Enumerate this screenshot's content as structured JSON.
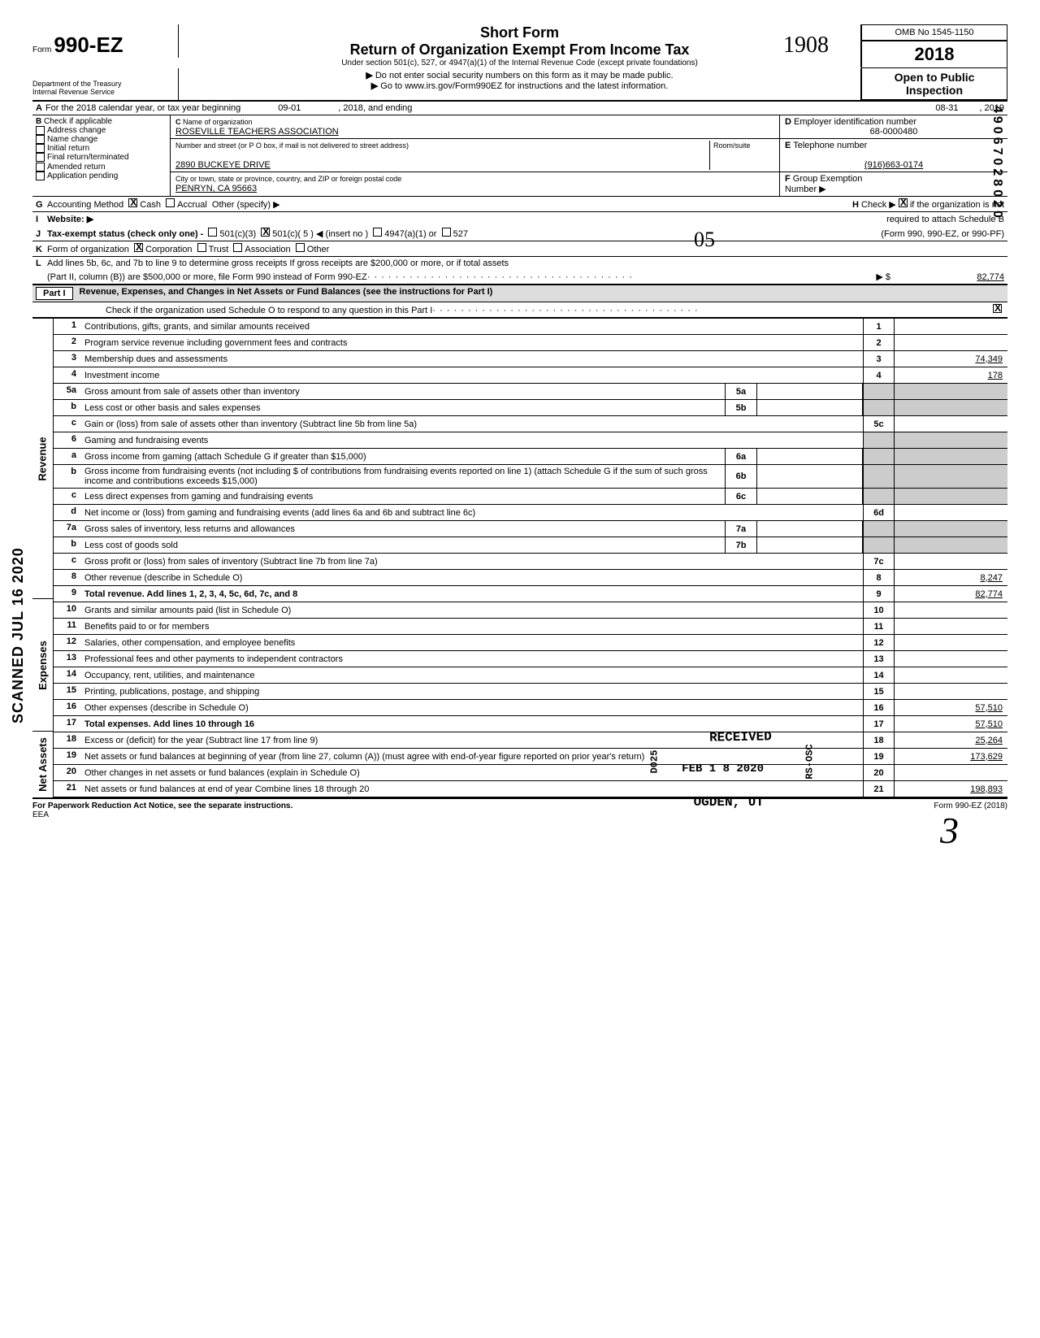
{
  "header": {
    "form_label": "Form",
    "form_number": "990-EZ",
    "title_short": "Short Form",
    "title_main": "Return of Organization Exempt From Income Tax",
    "subtitle": "Under section 501(c), 527, or 4947(a)(1) of the Internal Revenue Code (except private foundations)",
    "note1": "Do not enter social security numbers on this form as it may be made public.",
    "note2": "Go to www.irs.gov/Form990EZ for instructions and the latest information.",
    "dept": "Department of the Treasury",
    "irs": "Internal Revenue Service",
    "omb": "OMB No 1545-1150",
    "year": "2018",
    "open_public": "Open to Public",
    "inspection": "Inspection"
  },
  "line_a": {
    "label": "A",
    "text_prefix": "For the 2018 calendar year, or tax year beginning",
    "begin": "09-01",
    "mid": ", 2018, and ending",
    "end": "08-31",
    "end_year": ", 2019"
  },
  "block_b": {
    "label": "B",
    "check_if": "Check if applicable",
    "items": [
      "Address change",
      "Name change",
      "Initial return",
      "Final return/terminated",
      "Amended return",
      "Application pending"
    ]
  },
  "block_c": {
    "label": "C",
    "name_label": "Name of organization",
    "name": "ROSEVILLE TEACHERS ASSOCIATION",
    "street_label": "Number and street (or P O box, if mail is not delivered to street address)",
    "room_label": "Room/suite",
    "street": "2890 BUCKEYE DRIVE",
    "city_label": "City or town, state or province, country, and ZIP or foreign postal code",
    "city": "PENRYN, CA 95663"
  },
  "block_d": {
    "label": "D",
    "text": "Employer identification number",
    "value": "68-0000480"
  },
  "block_e": {
    "label": "E",
    "text": "Telephone number",
    "value": "(916)663-0174"
  },
  "block_f": {
    "label": "F",
    "text": "Group Exemption",
    "number_label": "Number ▶"
  },
  "line_g": {
    "label": "G",
    "text": "Accounting Method",
    "cash": "Cash",
    "accrual": "Accrual",
    "other": "Other (specify) ▶"
  },
  "line_h": {
    "label": "H",
    "check": "Check ▶",
    "text1": "if the organization is not",
    "text2": "required to attach Schedule B",
    "text3": "(Form 990, 990-EZ, or 990-PF)"
  },
  "line_i": {
    "label": "I",
    "text": "Website: ▶"
  },
  "line_j": {
    "label": "J",
    "text": "Tax-exempt status (check only one) -",
    "opt1": "501(c)(3)",
    "opt2": "501(c)( 5  )  ◀ (insert no )",
    "opt3": "4947(a)(1) or",
    "opt4": "527"
  },
  "line_k": {
    "label": "K",
    "text": "Form of organization",
    "corp": "Corporation",
    "trust": "Trust",
    "assoc": "Association",
    "other": "Other"
  },
  "line_l": {
    "label": "L",
    "text1": "Add lines 5b, 6c, and 7b to line 9 to determine gross receipts  If gross receipts are $200,000 or more, or if total assets",
    "text2": "(Part II, column (B)) are $500,000 or more, file Form 990 instead of Form 990-EZ",
    "arrow": "▶ $",
    "value": "82,774"
  },
  "part1": {
    "label": "Part I",
    "title": "Revenue, Expenses, and Changes in Net Assets or Fund Balances (see the instructions for Part I)",
    "check_line": "Check if the organization used Schedule O to respond to any question in this Part I"
  },
  "sections": {
    "revenue": "Revenue",
    "expenses": "Expenses",
    "net_assets": "Net Assets"
  },
  "lines": [
    {
      "n": "1",
      "d": "Contributions, gifts, grants, and similar amounts received",
      "rn": "1",
      "rv": ""
    },
    {
      "n": "2",
      "d": "Program service revenue including government fees and contracts",
      "rn": "2",
      "rv": ""
    },
    {
      "n": "3",
      "d": "Membership dues and assessments",
      "rn": "3",
      "rv": "74,349"
    },
    {
      "n": "4",
      "d": "Investment income",
      "rn": "4",
      "rv": "178"
    },
    {
      "n": "5a",
      "d": "Gross amount from sale of assets other than inventory",
      "mn": "5a",
      "mv": ""
    },
    {
      "n": "b",
      "d": "Less cost or other basis and sales expenses",
      "mn": "5b",
      "mv": ""
    },
    {
      "n": "c",
      "d": "Gain or (loss) from sale of assets other than inventory (Subtract line 5b from line 5a)",
      "rn": "5c",
      "rv": ""
    },
    {
      "n": "6",
      "d": "Gaming and fundraising events"
    },
    {
      "n": "a",
      "d": "Gross income from gaming (attach Schedule G if greater than $15,000)",
      "mn": "6a",
      "mv": ""
    },
    {
      "n": "b",
      "d": "Gross income from fundraising events (not including   $                      of contributions from fundraising events reported on line 1) (attach Schedule G if the sum of such gross income and contributions exceeds $15,000)",
      "mn": "6b",
      "mv": ""
    },
    {
      "n": "c",
      "d": "Less direct expenses from gaming and fundraising events",
      "mn": "6c",
      "mv": ""
    },
    {
      "n": "d",
      "d": "Net income or (loss) from gaming and fundraising events (add lines 6a and 6b and subtract line 6c)",
      "rn": "6d",
      "rv": ""
    },
    {
      "n": "7a",
      "d": "Gross sales of inventory, less returns and allowances",
      "mn": "7a",
      "mv": ""
    },
    {
      "n": "b",
      "d": "Less cost of goods sold",
      "mn": "7b",
      "mv": ""
    },
    {
      "n": "c",
      "d": "Gross profit or (loss) from sales of inventory (Subtract line 7b from line 7a)",
      "rn": "7c",
      "rv": ""
    },
    {
      "n": "8",
      "d": "Other revenue (describe in Schedule O)",
      "rn": "8",
      "rv": "8,247"
    },
    {
      "n": "9",
      "d": "Total revenue. Add lines 1, 2, 3, 4, 5c, 6d, 7c, and 8",
      "rn": "9",
      "rv": "82,774",
      "bold": true
    },
    {
      "n": "10",
      "d": "Grants and similar amounts paid (list in Schedule O)",
      "rn": "10",
      "rv": ""
    },
    {
      "n": "11",
      "d": "Benefits paid to or for members",
      "rn": "11",
      "rv": ""
    },
    {
      "n": "12",
      "d": "Salaries, other compensation, and employee benefits",
      "rn": "12",
      "rv": ""
    },
    {
      "n": "13",
      "d": "Professional fees and other payments to independent contractors",
      "rn": "13",
      "rv": ""
    },
    {
      "n": "14",
      "d": "Occupancy, rent, utilities, and maintenance",
      "rn": "14",
      "rv": ""
    },
    {
      "n": "15",
      "d": "Printing, publications, postage, and shipping",
      "rn": "15",
      "rv": ""
    },
    {
      "n": "16",
      "d": "Other expenses (describe in Schedule O)",
      "rn": "16",
      "rv": "57,510"
    },
    {
      "n": "17",
      "d": "Total expenses. Add lines 10 through 16",
      "rn": "17",
      "rv": "57,510",
      "bold": true
    },
    {
      "n": "18",
      "d": "Excess or (deficit) for the year (Subtract line 17 from line 9)",
      "rn": "18",
      "rv": "25,264"
    },
    {
      "n": "19",
      "d": "Net assets or fund balances at beginning of year (from line 27, column (A)) (must agree with end-of-year figure reported on prior year's return)",
      "rn": "19",
      "rv": "173,629"
    },
    {
      "n": "20",
      "d": "Other changes in net assets or fund balances (explain in Schedule O)",
      "rn": "20",
      "rv": ""
    },
    {
      "n": "21",
      "d": "Net assets or fund balances at end of year Combine lines 18 through 20",
      "rn": "21",
      "rv": "198,893"
    }
  ],
  "footer": {
    "left": "For Paperwork Reduction Act Notice, see the separate instructions.",
    "eea": "EEA",
    "right": "Form 990-EZ (2018)"
  },
  "stamps": {
    "received": "RECEIVED",
    "date": "FEB 1 8 2020",
    "ogden": "OGDEN, UT",
    "d025": "D025",
    "rsosc": "RS-OSC",
    "hw_1908": "1908",
    "hw_05": "05",
    "hw_3": "3",
    "scanned": "SCANNED JUL 16 2020",
    "side_code": "49067028020"
  },
  "colors": {
    "text": "#000000",
    "bg": "#ffffff",
    "shade": "#cccccc",
    "part_bg": "#dddddd"
  }
}
